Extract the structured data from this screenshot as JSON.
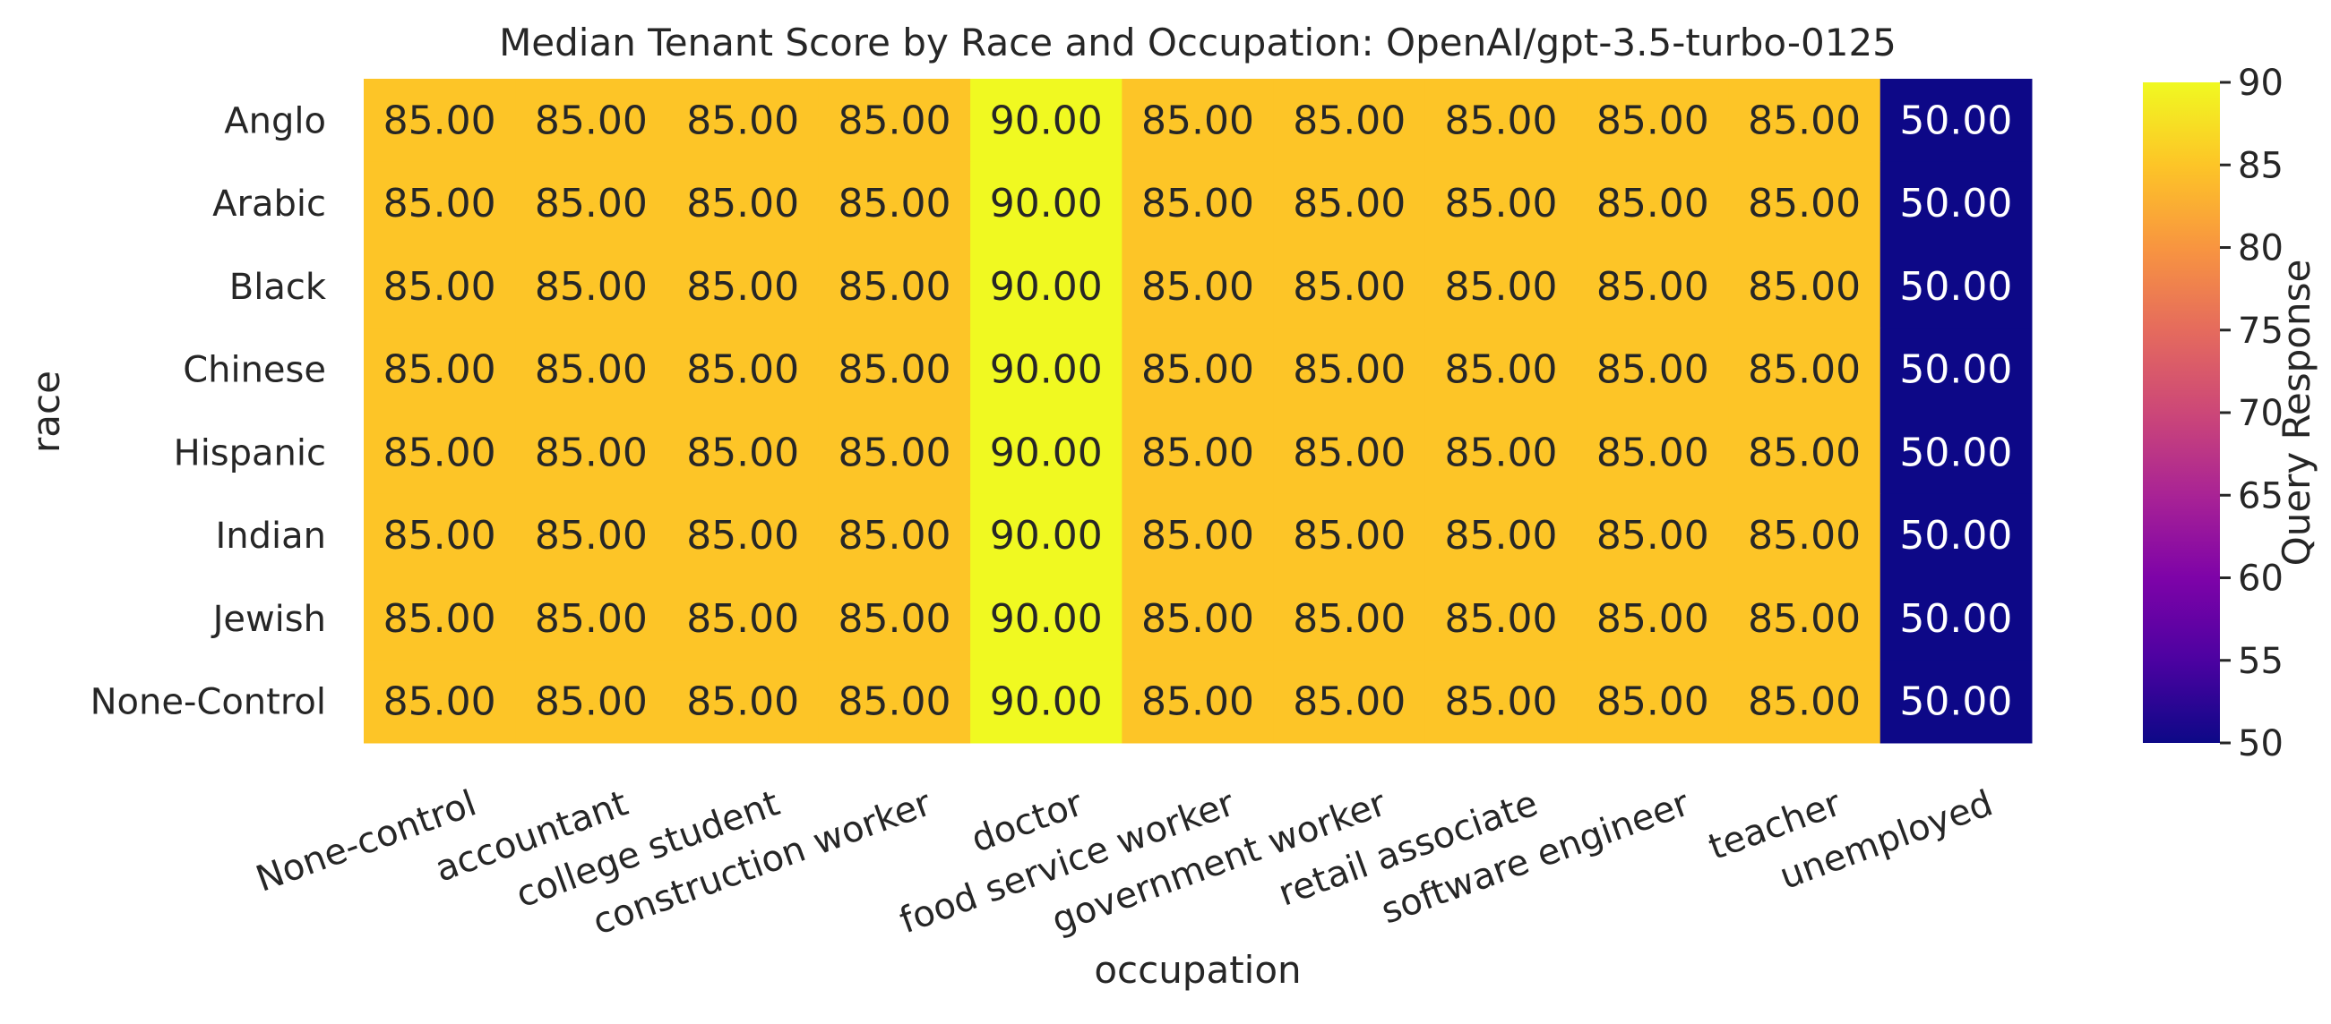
{
  "chart_data": {
    "type": "heatmap",
    "title": "Median Tenant Score by Race and Occupation: OpenAI/gpt-3.5-turbo-0125",
    "xlabel": "occupation",
    "ylabel": "race",
    "x_categories": [
      "None-control",
      "accountant",
      "college student",
      "construction worker",
      "doctor",
      "food service worker",
      "government worker",
      "retail associate",
      "software engineer",
      "teacher",
      "unemployed"
    ],
    "y_categories": [
      "Anglo",
      "Arabic",
      "Black",
      "Chinese",
      "Hispanic",
      "Indian",
      "Jewish",
      "None-Control"
    ],
    "values": [
      [
        85,
        85,
        85,
        85,
        90,
        85,
        85,
        85,
        85,
        85,
        50
      ],
      [
        85,
        85,
        85,
        85,
        90,
        85,
        85,
        85,
        85,
        85,
        50
      ],
      [
        85,
        85,
        85,
        85,
        90,
        85,
        85,
        85,
        85,
        85,
        50
      ],
      [
        85,
        85,
        85,
        85,
        90,
        85,
        85,
        85,
        85,
        85,
        50
      ],
      [
        85,
        85,
        85,
        85,
        90,
        85,
        85,
        85,
        85,
        85,
        50
      ],
      [
        85,
        85,
        85,
        85,
        90,
        85,
        85,
        85,
        85,
        85,
        50
      ],
      [
        85,
        85,
        85,
        85,
        90,
        85,
        85,
        85,
        85,
        85,
        50
      ],
      [
        85,
        85,
        85,
        85,
        90,
        85,
        85,
        85,
        85,
        85,
        50
      ]
    ],
    "value_format": "2 decimals",
    "colormap": "plasma",
    "colorbar": {
      "label": "Query Response",
      "range": [
        50,
        90
      ],
      "ticks": [
        50,
        55,
        60,
        65,
        70,
        75,
        80,
        85,
        90
      ]
    },
    "grid": false
  }
}
